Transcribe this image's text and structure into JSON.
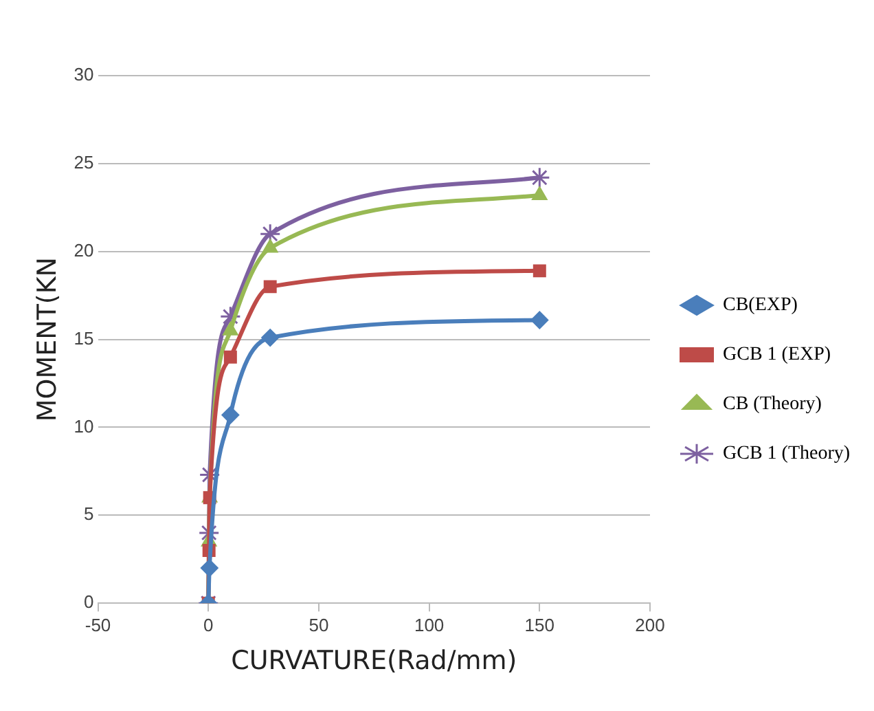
{
  "chart_data": {
    "type": "line",
    "xlabel": "CURVATURE(Rad/mm)",
    "ylabel": "MOMENT(KN",
    "xlim": [
      -50,
      200
    ],
    "xticks": [
      -50,
      0,
      50,
      100,
      150,
      200
    ],
    "ylim": [
      0,
      30
    ],
    "yticks": [
      0,
      5,
      10,
      15,
      20,
      25,
      30
    ],
    "grid": "y",
    "legend": "right",
    "line_style": "solid",
    "series": [
      {
        "name": "CB(EXP)",
        "color": "#4a7ebb",
        "marker": "diamond",
        "x": [
          0,
          0.5,
          10,
          28,
          150
        ],
        "values": [
          0,
          2,
          10.7,
          15.1,
          16.1
        ]
      },
      {
        "name": "GCB 1 (EXP)",
        "color": "#be4b48",
        "marker": "square",
        "x": [
          0,
          0.3,
          0.6,
          10,
          28,
          150
        ],
        "values": [
          0,
          3,
          6,
          14,
          18,
          18.9
        ]
      },
      {
        "name": "CB (Theory)",
        "color": "#98b954",
        "marker": "triangle",
        "x": [
          0,
          0.3,
          0.6,
          10,
          28,
          150
        ],
        "values": [
          0,
          3.5,
          6,
          15.5,
          20.2,
          23.2
        ]
      },
      {
        "name": "GCB 1 (Theory)",
        "color": "#7d60a0",
        "marker": "cross",
        "x": [
          0,
          0.3,
          0.6,
          10,
          28,
          150
        ],
        "values": [
          0,
          4,
          7.3,
          16.3,
          21,
          24.2
        ]
      }
    ]
  }
}
